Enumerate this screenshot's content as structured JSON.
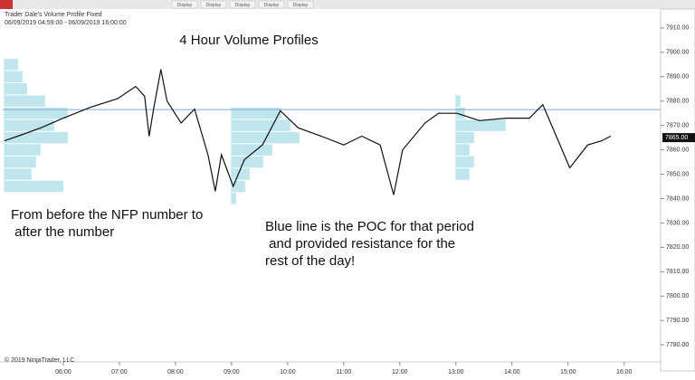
{
  "chart_data": {
    "type": "line",
    "window_title": "Trader Dale's Volume Profile Fixed",
    "subtitle": "06/09/2019 04:59:00 - 06/09/2019 16:00:00",
    "title": "4 Hour Volume Profiles",
    "toolbar_buttons": [
      "Display",
      "Display",
      "Display",
      "Display",
      "Display"
    ],
    "annotations": [
      {
        "lines": [
          "From before the NFP number to",
          " after the number"
        ]
      },
      {
        "lines": [
          "Blue line is the POC for that period",
          " and provided resistance for the",
          "rest of the day!"
        ]
      }
    ],
    "copyright": "© 2019 NinjaTrader, LLC",
    "x": [
      4.95,
      5.19,
      5.6,
      6.0,
      6.48,
      6.97,
      7.29,
      7.45,
      7.53,
      7.61,
      7.74,
      7.85,
      8.1,
      8.34,
      8.58,
      8.71,
      8.82,
      9.03,
      9.23,
      9.55,
      9.87,
      10.19,
      10.6,
      11.0,
      11.32,
      11.65,
      11.89,
      12.05,
      12.45,
      12.69,
      13.02,
      13.42,
      13.9,
      14.31,
      14.55,
      14.79,
      15.03,
      15.35,
      15.6,
      15.76
    ],
    "values": [
      7863.7,
      7865.6,
      7869,
      7873,
      7877.4,
      7881,
      7886,
      7882,
      7865.6,
      7876.7,
      7893,
      7880,
      7871,
      7876.7,
      7858,
      7843,
      7858,
      7845,
      7856,
      7862,
      7876,
      7869,
      7865.6,
      7862,
      7865.6,
      7862,
      7841.5,
      7860,
      7871,
      7875,
      7875,
      7872,
      7873,
      7873,
      7878.5,
      7865.6,
      7852.6,
      7862,
      7863.7,
      7865.6
    ],
    "color": "#111111",
    "xlim": [
      4.92,
      16.65
    ],
    "ylim": [
      7773,
      7917
    ],
    "xticks": [
      {
        "value": 6,
        "label": "06:00"
      },
      {
        "value": 7,
        "label": "07:00"
      },
      {
        "value": 8,
        "label": "08:00"
      },
      {
        "value": 9,
        "label": "09:00"
      },
      {
        "value": 10,
        "label": "10:00"
      },
      {
        "value": 11,
        "label": "11:00"
      },
      {
        "value": 12,
        "label": "12:00"
      },
      {
        "value": 13,
        "label": "13:00"
      },
      {
        "value": 14,
        "label": "14:00"
      },
      {
        "value": 15,
        "label": "15:00"
      },
      {
        "value": 16,
        "label": "16:00"
      }
    ],
    "yticks": [
      {
        "value": 7780,
        "label": "7780.00"
      },
      {
        "value": 7790,
        "label": "7790.00"
      },
      {
        "value": 7800,
        "label": "7800.00"
      },
      {
        "value": 7810,
        "label": "7810.00"
      },
      {
        "value": 7820,
        "label": "7820.00"
      },
      {
        "value": 7830,
        "label": "7830.00"
      },
      {
        "value": 7840,
        "label": "7840.00"
      },
      {
        "value": 7850,
        "label": "7850.00"
      },
      {
        "value": 7860,
        "label": "7860.00"
      },
      {
        "value": 7870,
        "label": "7870.00"
      },
      {
        "value": 7880,
        "label": "7880.00"
      },
      {
        "value": 7890,
        "label": "7890.00"
      },
      {
        "value": 7900,
        "label": "7900.00"
      },
      {
        "value": 7910,
        "label": "7910.00"
      }
    ],
    "last_price": {
      "value": 7865,
      "label": "7865.00"
    },
    "poc_level": 7876.5,
    "poc_color": "#7fa6d6",
    "profile_color": "#bfe6ec",
    "profiles": [
      {
        "start": 4.95,
        "prices": [
          7895,
          7890,
          7885,
          7880,
          7875,
          7870,
          7865,
          7860,
          7855,
          7850,
          7845
        ],
        "volumes": [
          15,
          20,
          25,
          45,
          70,
          55,
          70,
          40,
          35,
          30,
          65
        ]
      },
      {
        "start": 9.0,
        "prices": [
          7875,
          7870,
          7865,
          7860,
          7855,
          7850,
          7845,
          7840
        ],
        "volumes": [
          55,
          65,
          75,
          45,
          35,
          20,
          15,
          5
        ]
      },
      {
        "start": 13.0,
        "prices": [
          7880,
          7875,
          7870,
          7865,
          7860,
          7855,
          7850
        ],
        "volumes": [
          5,
          10,
          55,
          20,
          15,
          20,
          15
        ]
      }
    ]
  }
}
